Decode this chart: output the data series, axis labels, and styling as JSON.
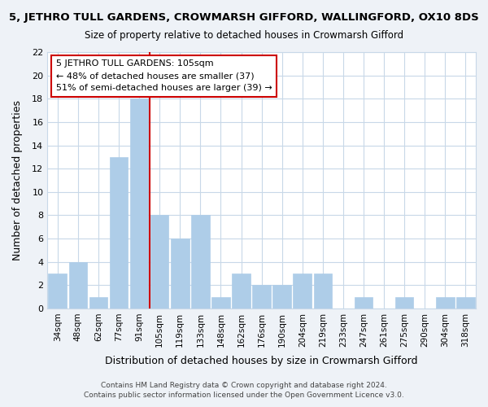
{
  "title": "5, JETHRO TULL GARDENS, CROWMARSH GIFFORD, WALLINGFORD, OX10 8DS",
  "subtitle": "Size of property relative to detached houses in Crowmarsh Gifford",
  "xlabel": "Distribution of detached houses by size in Crowmarsh Gifford",
  "ylabel": "Number of detached properties",
  "bar_color": "#aecde8",
  "bar_edge_color": "#aecde8",
  "grid_color": "#c8d8e8",
  "tick_labels": [
    "34sqm",
    "48sqm",
    "62sqm",
    "77sqm",
    "91sqm",
    "105sqm",
    "119sqm",
    "133sqm",
    "148sqm",
    "162sqm",
    "176sqm",
    "190sqm",
    "204sqm",
    "219sqm",
    "233sqm",
    "247sqm",
    "261sqm",
    "275sqm",
    "290sqm",
    "304sqm",
    "318sqm"
  ],
  "values": [
    3,
    4,
    1,
    13,
    18,
    8,
    6,
    8,
    1,
    3,
    2,
    2,
    3,
    3,
    0,
    1,
    0,
    1,
    0,
    1,
    1
  ],
  "ylim": [
    0,
    22
  ],
  "yticks": [
    0,
    2,
    4,
    6,
    8,
    10,
    12,
    14,
    16,
    18,
    20,
    22
  ],
  "vline_idx": 5,
  "vline_color": "#cc0000",
  "annotation_title": "5 JETHRO TULL GARDENS: 105sqm",
  "annotation_line1": "← 48% of detached houses are smaller (37)",
  "annotation_line2": "51% of semi-detached houses are larger (39) →",
  "annotation_box_edge": "#cc0000",
  "footer_line1": "Contains HM Land Registry data © Crown copyright and database right 2024.",
  "footer_line2": "Contains public sector information licensed under the Open Government Licence v3.0.",
  "background_color": "#eef2f7",
  "plot_bg_color": "#ffffff"
}
